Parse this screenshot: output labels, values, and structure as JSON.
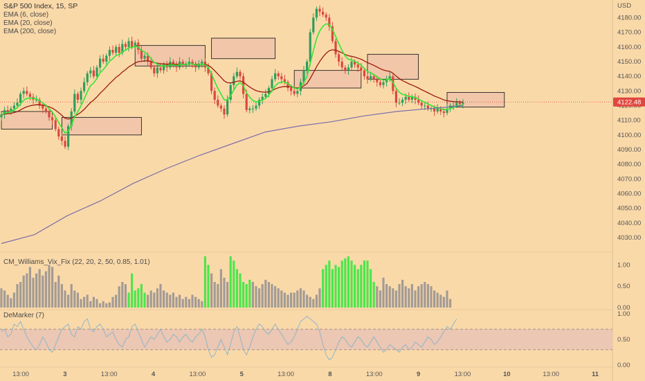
{
  "header": {
    "symbol_line": "S&P 500 Index, 15, SP",
    "indicators": [
      "EMA (6, close)",
      "EMA (20, close)",
      "EMA (200, close)"
    ]
  },
  "panes": {
    "vix_label": "CM_Williams_Vix_Fix (22, 20, 2, 50, 0.85, 1.01)",
    "demarker_label": "DeMarker (7)"
  },
  "colors": {
    "background": "#FAD9A9",
    "up_candle": "#2E9E5B",
    "down_candle": "#D9493F",
    "ema6": "#33E633",
    "ema20": "#9B1B0C",
    "ema200": "#7A6FA8",
    "vix_bar": "#A39B95",
    "vix_highlight": "#4CE64C",
    "demarker_line": "#8FB6C8",
    "demarker_band": "#E9C3B5",
    "zone_fill": "#F2C6A8",
    "price_badge": "#E0463D"
  },
  "chart_data": [
    {
      "type": "candlestick",
      "title": "S&P 500 Index, 15, SP",
      "ylabel": "USD",
      "ylim": [
        4022,
        4192
      ],
      "yticks": [
        4030,
        4040,
        4050,
        4060,
        4070,
        4080,
        4090,
        4100,
        4110,
        4120,
        4130,
        4140,
        4150,
        4160,
        4170,
        4180
      ],
      "xticks": [
        "13:00",
        "3",
        "13:00",
        "4",
        "13:00",
        "5",
        "13:00",
        "8",
        "13:00",
        "9",
        "13:00",
        "10",
        "13:00",
        "11"
      ],
      "last_price": 4122.48,
      "closes": [
        4114,
        4117,
        4116,
        4118,
        4120,
        4122,
        4128,
        4130,
        4128,
        4126,
        4124,
        4124,
        4120,
        4118,
        4116,
        4112,
        4110,
        4104,
        4099,
        4096,
        4092,
        4106,
        4116,
        4128,
        4124,
        4130,
        4136,
        4142,
        4144,
        4140,
        4146,
        4152,
        4150,
        4154,
        4158,
        4156,
        4160,
        4156,
        4162,
        4160,
        4164,
        4160,
        4163,
        4158,
        4152,
        4154,
        4150,
        4146,
        4142,
        4146,
        4144,
        4148,
        4146,
        4150,
        4148,
        4146,
        4150,
        4148,
        4148,
        4150,
        4148,
        4146,
        4148,
        4150,
        4146,
        4142,
        4130,
        4124,
        4120,
        4118,
        4114,
        4124,
        4134,
        4140,
        4143,
        4140,
        4128,
        4117,
        4118,
        4118,
        4120,
        4124,
        4126,
        4128,
        4132,
        4138,
        4142,
        4140,
        4138,
        4136,
        4132,
        4130,
        4128,
        4130,
        4136,
        4144,
        4150,
        4170,
        4180,
        4186,
        4184,
        4182,
        4180,
        4174,
        4164,
        4155,
        4150,
        4146,
        4144,
        4146,
        4150,
        4148,
        4146,
        4144,
        4140,
        4138,
        4140,
        4138,
        4136,
        4134,
        4136,
        4138,
        4140,
        4130,
        4122,
        4122,
        4124,
        4126,
        4124,
        4126,
        4124,
        4122,
        4120,
        4120,
        4118,
        4118,
        4116,
        4118,
        4116,
        4115,
        4118,
        4120,
        4120,
        4122,
        4121,
        4122
      ],
      "ema_periods": [
        6,
        20,
        200
      ],
      "series": [
        {
          "name": "EMA (6, close)"
        },
        {
          "name": "EMA (20, close)"
        },
        {
          "name": "EMA (200, close)",
          "values": [
            4026,
            4032,
            4045,
            4055,
            4067,
            4077,
            4086,
            4094,
            4102,
            4106,
            4109,
            4113,
            4116,
            4118,
            4120
          ]
        }
      ],
      "zones": [
        {
          "x_from": 0,
          "x_to": 16,
          "y_from": 4116,
          "y_to": 4104
        },
        {
          "x_from": 19,
          "x_to": 44,
          "y_from": 4112,
          "y_to": 4100
        },
        {
          "x_from": 42,
          "x_to": 64,
          "y_from": 4161,
          "y_to": 4147
        },
        {
          "x_from": 66,
          "x_to": 86,
          "y_from": 4166,
          "y_to": 4152
        },
        {
          "x_from": 92,
          "x_to": 113,
          "y_from": 4144,
          "y_to": 4132
        },
        {
          "x_from": 115,
          "x_to": 131,
          "y_from": 4155,
          "y_to": 4138
        },
        {
          "x_from": 140,
          "x_to": 158,
          "y_from": 4129,
          "y_to": 4119
        }
      ]
    },
    {
      "type": "bar",
      "title": "CM_Williams_Vix_Fix (22, 20, 2, 50, 0.85, 1.01)",
      "ylim": [
        0,
        1.2
      ],
      "yticks": [
        0.0,
        0.5,
        1.0
      ],
      "values": [
        0.45,
        0.4,
        0.3,
        0.22,
        0.35,
        0.55,
        0.6,
        0.75,
        0.8,
        0.95,
        0.7,
        0.8,
        0.9,
        0.75,
        0.85,
        1.0,
        0.95,
        0.6,
        0.75,
        0.55,
        0.4,
        0.3,
        0.55,
        0.4,
        0.35,
        0.2,
        0.25,
        0.3,
        0.15,
        0.25,
        0.2,
        0.1,
        0.15,
        0.1,
        0.12,
        0.25,
        0.3,
        0.5,
        0.6,
        0.55,
        0.35,
        0.8,
        0.4,
        0.45,
        0.55,
        0.35,
        0.3,
        0.4,
        0.35,
        0.45,
        0.55,
        0.4,
        0.35,
        0.3,
        0.35,
        0.25,
        0.3,
        0.2,
        0.25,
        0.2,
        0.3,
        0.25,
        0.2,
        0.15,
        1.2,
        1.0,
        0.8,
        0.6,
        0.55,
        0.9,
        0.7,
        0.6,
        1.2,
        1.1,
        0.9,
        0.8,
        0.6,
        0.55,
        0.65,
        0.6,
        0.5,
        0.45,
        0.55,
        0.65,
        0.6,
        0.55,
        0.5,
        0.45,
        0.4,
        0.35,
        0.3,
        0.35,
        0.35,
        0.4,
        0.45,
        0.4,
        0.3,
        0.25,
        0.2,
        0.3,
        0.45,
        0.9,
        1.0,
        1.1,
        0.9,
        1.0,
        0.95,
        1.1,
        1.15,
        1.2,
        1.1,
        1.0,
        0.9,
        1.0,
        1.1,
        1.1,
        0.9,
        0.6,
        0.5,
        0.4,
        0.7,
        0.55,
        0.5,
        0.45,
        0.4,
        0.55,
        0.65,
        0.5,
        0.45,
        0.55,
        0.4,
        0.5,
        0.55,
        0.6,
        0.55,
        0.5,
        0.4,
        0.35,
        0.3,
        0.25,
        0.4,
        0.2
      ],
      "highlight_indices": [
        40,
        41,
        42,
        43,
        44,
        45,
        64,
        65,
        72,
        73,
        74,
        75,
        76,
        77,
        78,
        101,
        102,
        103,
        104,
        105,
        106,
        107,
        108,
        109,
        110,
        111,
        112,
        113,
        114,
        115,
        116,
        117
      ]
    },
    {
      "type": "line",
      "title": "DeMarker (7)",
      "ylim": [
        0,
        1
      ],
      "yticks": [
        0.0,
        0.5,
        1.0
      ],
      "band": [
        0.3,
        0.7
      ],
      "values": [
        0.65,
        0.7,
        0.55,
        0.6,
        0.8,
        0.75,
        0.85,
        0.7,
        0.55,
        0.45,
        0.35,
        0.3,
        0.4,
        0.55,
        0.45,
        0.3,
        0.25,
        0.4,
        0.55,
        0.7,
        0.75,
        0.8,
        0.6,
        0.55,
        0.75,
        0.7,
        0.85,
        0.9,
        0.7,
        0.65,
        0.75,
        0.8,
        0.7,
        0.55,
        0.6,
        0.65,
        0.5,
        0.4,
        0.35,
        0.5,
        0.55,
        0.75,
        0.8,
        0.65,
        0.5,
        0.35,
        0.45,
        0.55,
        0.5,
        0.6,
        0.7,
        0.55,
        0.45,
        0.5,
        0.6,
        0.55,
        0.45,
        0.55,
        0.6,
        0.5,
        0.45,
        0.55,
        0.6,
        0.7,
        0.55,
        0.3,
        0.15,
        0.2,
        0.35,
        0.5,
        0.35,
        0.2,
        0.4,
        0.65,
        0.75,
        0.55,
        0.3,
        0.2,
        0.35,
        0.55,
        0.7,
        0.8,
        0.75,
        0.65,
        0.6,
        0.7,
        0.8,
        0.7,
        0.6,
        0.5,
        0.4,
        0.45,
        0.55,
        0.7,
        0.85,
        0.9,
        0.95,
        0.9,
        0.85,
        0.8,
        0.65,
        0.4,
        0.2,
        0.1,
        0.15,
        0.3,
        0.45,
        0.55,
        0.5,
        0.4,
        0.35,
        0.45,
        0.55,
        0.5,
        0.4,
        0.35,
        0.45,
        0.55,
        0.45,
        0.35,
        0.25,
        0.3,
        0.4,
        0.35,
        0.3,
        0.25,
        0.35,
        0.4,
        0.3,
        0.35,
        0.45,
        0.4,
        0.35,
        0.45,
        0.55,
        0.5,
        0.4,
        0.45,
        0.55,
        0.65,
        0.75,
        0.7,
        0.8,
        0.9
      ]
    }
  ]
}
